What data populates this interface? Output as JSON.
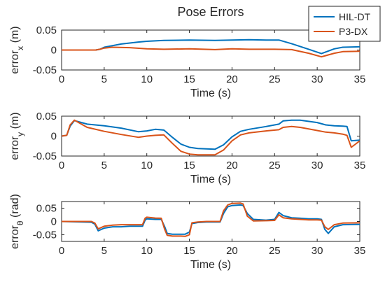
{
  "figure": {
    "title": "Pose Errors",
    "legend": {
      "placement": "top-right",
      "entries": [
        {
          "name": "HIL-DT",
          "color": "#0072BD"
        },
        {
          "name": "P3-DX",
          "color": "#D95319"
        }
      ]
    }
  },
  "chart_data": [
    {
      "type": "line",
      "title": "Pose Errors",
      "xlabel": "Time (s)",
      "ylabel_main": "error",
      "ylabel_sub": "x",
      "ylabel_unit": " (m)",
      "xlim": [
        0,
        35
      ],
      "ylim": [
        -0.05,
        0.05
      ],
      "xticks": [
        0,
        5,
        10,
        15,
        20,
        25,
        30,
        35
      ],
      "yticks": [
        -0.05,
        0,
        0.05
      ],
      "ytick_labels": [
        "-0.05",
        "0",
        "0.05"
      ],
      "grid": false,
      "series": [
        {
          "name": "HIL-DT",
          "color": "#0072BD",
          "x": [
            0,
            4,
            4.5,
            5,
            7,
            9,
            10,
            12,
            15,
            18,
            20,
            22,
            24,
            25.5,
            27,
            29,
            30.5,
            31,
            32,
            33,
            35
          ],
          "y": [
            0,
            0,
            0.002,
            0.007,
            0.015,
            0.02,
            0.022,
            0.024,
            0.025,
            0.024,
            0.025,
            0.026,
            0.025,
            0.025,
            0.016,
            0.002,
            -0.009,
            -0.005,
            0.003,
            0.007,
            0.008
          ]
        },
        {
          "name": "P3-DX",
          "color": "#D95319",
          "x": [
            0,
            4,
            4.5,
            5,
            6,
            8,
            10,
            12,
            15,
            18,
            20,
            22,
            25,
            27,
            29,
            30.5,
            31,
            32,
            33,
            35
          ],
          "y": [
            0,
            0,
            0.002,
            0.005,
            0.007,
            0.006,
            0.003,
            0.002,
            0.003,
            0.001,
            0.003,
            0.002,
            0.002,
            0.001,
            -0.008,
            -0.017,
            -0.014,
            -0.008,
            -0.004,
            -0.003
          ]
        }
      ]
    },
    {
      "type": "line",
      "xlabel": "Time (s)",
      "ylabel_main": "error",
      "ylabel_sub": "y",
      "ylabel_unit": " (m)",
      "xlim": [
        0,
        35
      ],
      "ylim": [
        -0.05,
        0.05
      ],
      "xticks": [
        0,
        5,
        10,
        15,
        20,
        25,
        30,
        35
      ],
      "yticks": [
        -0.05,
        0,
        0.05
      ],
      "ytick_labels": [
        "-0.05",
        "0",
        "0.05"
      ],
      "grid": false,
      "series": [
        {
          "name": "HIL-DT",
          "color": "#0072BD",
          "x": [
            0,
            0.6,
            1,
            1.5,
            2,
            3,
            5,
            7,
            9,
            10,
            11,
            12,
            13,
            14,
            15,
            16,
            18,
            19,
            20,
            21,
            22,
            24,
            25.5,
            26,
            27,
            28,
            30,
            31,
            32,
            33,
            33.5,
            34,
            35
          ],
          "y": [
            0,
            0.002,
            0.025,
            0.039,
            0.036,
            0.03,
            0.026,
            0.02,
            0.011,
            0.013,
            0.017,
            0.015,
            -0.003,
            -0.02,
            -0.028,
            -0.031,
            -0.033,
            -0.022,
            -0.002,
            0.012,
            0.017,
            0.024,
            0.03,
            0.038,
            0.04,
            0.04,
            0.034,
            0.028,
            0.026,
            0.025,
            0.024,
            -0.012,
            -0.01
          ]
        },
        {
          "name": "P3-DX",
          "color": "#D95319",
          "x": [
            0,
            0.6,
            1,
            1.5,
            2,
            3,
            5,
            7,
            9,
            10,
            11,
            12,
            13,
            14,
            15,
            16,
            18,
            19,
            20,
            21,
            22,
            24,
            25.5,
            26,
            27,
            28,
            30,
            31,
            32,
            33,
            33.5,
            34,
            35
          ],
          "y": [
            0,
            0.002,
            0.028,
            0.04,
            0.034,
            0.022,
            0.012,
            0.004,
            -0.003,
            0.0,
            0.002,
            0.003,
            -0.018,
            -0.038,
            -0.045,
            -0.047,
            -0.047,
            -0.035,
            -0.012,
            0.003,
            0.008,
            0.013,
            0.016,
            0.022,
            0.024,
            0.022,
            0.014,
            0.01,
            0.008,
            0.005,
            0.002,
            -0.028,
            -0.012
          ]
        }
      ]
    },
    {
      "type": "line",
      "xlabel": "Time (s)",
      "ylabel_main": "error",
      "ylabel_sub": "θ",
      "ylabel_unit": " (rad)",
      "xlim": [
        0,
        35
      ],
      "ylim": [
        -0.075,
        0.075
      ],
      "xticks": [
        0,
        5,
        10,
        15,
        20,
        25,
        30,
        35
      ],
      "yticks": [
        -0.05,
        0,
        0.05
      ],
      "ytick_labels": [
        "-0.05",
        "0",
        "0.05"
      ],
      "grid": false,
      "series": [
        {
          "name": "HIL-DT",
          "color": "#0072BD",
          "x": [
            0,
            3.5,
            3.9,
            4.3,
            5,
            6,
            7,
            8,
            9,
            9.5,
            9.8,
            10,
            11,
            11.7,
            12.1,
            12.4,
            13,
            14,
            14.5,
            15,
            15.3,
            16,
            17,
            18,
            18.6,
            19,
            19.5,
            20,
            21,
            21.3,
            21.8,
            22.5,
            24,
            25,
            25.5,
            26,
            27,
            28,
            29,
            30,
            30.5,
            30.9,
            31.3,
            32,
            33,
            35
          ],
          "y": [
            0,
            -0.003,
            -0.01,
            -0.035,
            -0.025,
            -0.02,
            -0.02,
            -0.018,
            -0.018,
            -0.018,
            0.005,
            0.01,
            0.008,
            0.008,
            -0.02,
            -0.045,
            -0.048,
            -0.048,
            -0.048,
            -0.04,
            -0.008,
            -0.004,
            -0.002,
            -0.002,
            -0.002,
            0.03,
            0.055,
            0.06,
            0.062,
            0.06,
            0.03,
            0.008,
            0.005,
            0.008,
            0.034,
            0.022,
            0.014,
            0.012,
            0.01,
            0.01,
            0.008,
            -0.03,
            -0.045,
            -0.02,
            -0.012,
            -0.011
          ]
        },
        {
          "name": "P3-DX",
          "color": "#D95319",
          "x": [
            0,
            3.5,
            3.9,
            4.3,
            5,
            6,
            7,
            8,
            9,
            9.5,
            9.8,
            10,
            11,
            11.7,
            12.1,
            12.4,
            13,
            14,
            14.5,
            15,
            15.3,
            16,
            17,
            18,
            18.6,
            19,
            19.5,
            20,
            21,
            21.3,
            21.8,
            22.5,
            24,
            25,
            25.5,
            26,
            27,
            28,
            29,
            30,
            30.5,
            30.9,
            31.3,
            32,
            33,
            35
          ],
          "y": [
            0,
            0,
            -0.006,
            -0.028,
            -0.018,
            -0.014,
            -0.012,
            -0.012,
            -0.012,
            -0.012,
            0.012,
            0.016,
            0.013,
            0.012,
            -0.03,
            -0.052,
            -0.055,
            -0.055,
            -0.056,
            -0.05,
            -0.005,
            -0.002,
            0,
            0,
            0,
            0.04,
            0.062,
            0.068,
            0.069,
            0.066,
            0.02,
            0.002,
            0.003,
            0.004,
            0.025,
            0.014,
            0.01,
            0.008,
            0.006,
            0.006,
            0.005,
            -0.02,
            -0.03,
            -0.012,
            -0.006,
            -0.005
          ]
        }
      ]
    }
  ]
}
